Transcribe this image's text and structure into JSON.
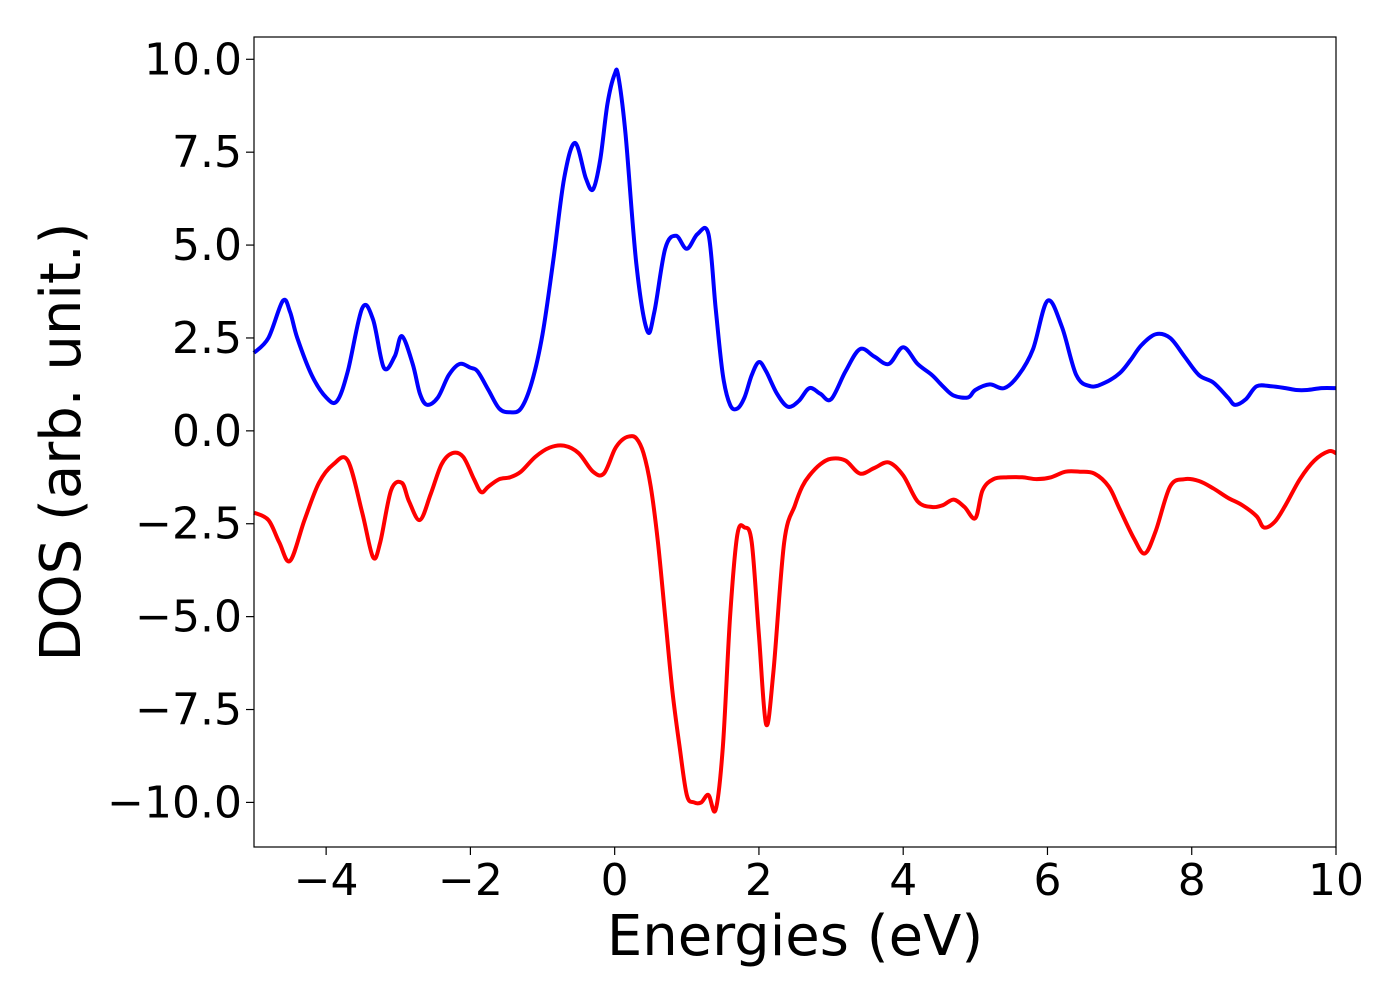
{
  "chart_data": {
    "type": "line",
    "xlabel": "Energies (eV)",
    "ylabel": "DOS (arb. unit.)",
    "xlim": [
      -5,
      10
    ],
    "ylim": [
      -11.2,
      10.6
    ],
    "xticks": [
      -4,
      -2,
      0,
      2,
      4,
      6,
      8,
      10
    ],
    "yticks": [
      10.0,
      7.5,
      5.0,
      2.5,
      0.0,
      -2.5,
      -5.0,
      -7.5,
      -10.0
    ],
    "xtick_labels": [
      "−4",
      "−2",
      "0",
      "2",
      "4",
      "6",
      "8",
      "10"
    ],
    "ytick_labels": [
      "10.0",
      "7.5",
      "5.0",
      "2.5",
      "0.0",
      "−2.5",
      "−5.0",
      "−7.5",
      "−10.0"
    ],
    "grid": false,
    "series": [
      {
        "color": "#0000ff",
        "x": [
          -5.0,
          -4.8,
          -4.6,
          -4.5,
          -4.4,
          -4.2,
          -4.0,
          -3.85,
          -3.7,
          -3.5,
          -3.35,
          -3.2,
          -3.05,
          -2.95,
          -2.8,
          -2.7,
          -2.6,
          -2.45,
          -2.3,
          -2.15,
          -2.0,
          -1.9,
          -1.75,
          -1.6,
          -1.45,
          -1.3,
          -1.15,
          -1.0,
          -0.85,
          -0.7,
          -0.55,
          -0.4,
          -0.3,
          -0.2,
          -0.1,
          0.0,
          0.05,
          0.15,
          0.3,
          0.45,
          0.55,
          0.7,
          0.85,
          1.0,
          1.15,
          1.3,
          1.4,
          1.5,
          1.6,
          1.7,
          1.8,
          1.9,
          2.0,
          2.1,
          2.25,
          2.4,
          2.55,
          2.7,
          2.85,
          3.0,
          3.2,
          3.4,
          3.6,
          3.8,
          4.0,
          4.2,
          4.4,
          4.55,
          4.7,
          4.9,
          5.0,
          5.2,
          5.4,
          5.6,
          5.8,
          6.0,
          6.2,
          6.4,
          6.6,
          6.8,
          7.0,
          7.15,
          7.3,
          7.5,
          7.7,
          7.9,
          8.1,
          8.3,
          8.5,
          8.6,
          8.75,
          8.9,
          9.1,
          9.3,
          9.45,
          9.6,
          9.8,
          10.0
        ],
        "y": [
          2.1,
          2.5,
          3.5,
          3.2,
          2.5,
          1.5,
          0.9,
          0.8,
          1.6,
          3.3,
          3.0,
          1.7,
          2.0,
          2.55,
          1.8,
          1.0,
          0.7,
          0.9,
          1.5,
          1.8,
          1.7,
          1.6,
          1.1,
          0.6,
          0.5,
          0.6,
          1.3,
          2.6,
          4.6,
          6.8,
          7.75,
          6.8,
          6.5,
          7.3,
          8.8,
          9.6,
          9.55,
          8.0,
          4.5,
          2.7,
          3.2,
          4.9,
          5.25,
          4.9,
          5.3,
          5.3,
          3.3,
          1.5,
          0.7,
          0.6,
          0.9,
          1.5,
          1.85,
          1.6,
          1.0,
          0.65,
          0.8,
          1.15,
          1.0,
          0.85,
          1.6,
          2.2,
          2.0,
          1.8,
          2.25,
          1.8,
          1.5,
          1.2,
          0.95,
          0.9,
          1.1,
          1.25,
          1.15,
          1.5,
          2.2,
          3.5,
          2.8,
          1.5,
          1.2,
          1.3,
          1.55,
          1.9,
          2.3,
          2.6,
          2.5,
          2.0,
          1.5,
          1.3,
          0.9,
          0.7,
          0.85,
          1.2,
          1.2,
          1.15,
          1.1,
          1.1,
          1.15,
          1.15
        ]
      },
      {
        "color": "#ff0000",
        "x": [
          -5.0,
          -4.8,
          -4.65,
          -4.5,
          -4.3,
          -4.1,
          -3.9,
          -3.7,
          -3.5,
          -3.35,
          -3.25,
          -3.1,
          -2.95,
          -2.85,
          -2.7,
          -2.55,
          -2.4,
          -2.25,
          -2.1,
          -1.95,
          -1.85,
          -1.75,
          -1.6,
          -1.45,
          -1.3,
          -1.1,
          -0.9,
          -0.7,
          -0.5,
          -0.3,
          -0.15,
          0.0,
          0.1,
          0.2,
          0.3,
          0.4,
          0.5,
          0.6,
          0.7,
          0.8,
          0.9,
          1.0,
          1.1,
          1.2,
          1.3,
          1.4,
          1.5,
          1.6,
          1.7,
          1.8,
          1.9,
          2.0,
          2.1,
          2.2,
          2.35,
          2.5,
          2.6,
          2.7,
          2.85,
          3.0,
          3.2,
          3.4,
          3.6,
          3.8,
          4.0,
          4.2,
          4.4,
          4.55,
          4.7,
          4.85,
          5.0,
          5.1,
          5.25,
          5.45,
          5.65,
          5.85,
          6.05,
          6.25,
          6.45,
          6.65,
          6.85,
          7.0,
          7.2,
          7.35,
          7.5,
          7.7,
          7.9,
          8.1,
          8.3,
          8.5,
          8.7,
          8.9,
          9.0,
          9.15,
          9.3,
          9.5,
          9.7,
          9.9,
          10.0
        ],
        "y": [
          -2.2,
          -2.4,
          -3.0,
          -3.5,
          -2.4,
          -1.4,
          -0.9,
          -0.8,
          -2.2,
          -3.4,
          -3.0,
          -1.6,
          -1.4,
          -1.9,
          -2.4,
          -1.7,
          -0.9,
          -0.6,
          -0.7,
          -1.3,
          -1.65,
          -1.5,
          -1.3,
          -1.25,
          -1.1,
          -0.7,
          -0.45,
          -0.4,
          -0.6,
          -1.1,
          -1.15,
          -0.5,
          -0.25,
          -0.15,
          -0.2,
          -0.6,
          -1.5,
          -3.0,
          -5.0,
          -7.0,
          -8.5,
          -9.8,
          -10.0,
          -10.0,
          -9.8,
          -10.2,
          -8.5,
          -5.0,
          -2.8,
          -2.6,
          -3.0,
          -5.5,
          -7.9,
          -6.5,
          -3.0,
          -2.0,
          -1.5,
          -1.2,
          -0.9,
          -0.75,
          -0.8,
          -1.15,
          -1.0,
          -0.85,
          -1.2,
          -1.9,
          -2.05,
          -2.0,
          -1.85,
          -2.05,
          -2.35,
          -1.6,
          -1.3,
          -1.25,
          -1.25,
          -1.3,
          -1.25,
          -1.1,
          -1.1,
          -1.15,
          -1.5,
          -2.1,
          -2.9,
          -3.3,
          -2.7,
          -1.5,
          -1.3,
          -1.35,
          -1.55,
          -1.8,
          -2.0,
          -2.3,
          -2.6,
          -2.45,
          -2.0,
          -1.3,
          -0.8,
          -0.55,
          -0.6
        ]
      }
    ]
  }
}
